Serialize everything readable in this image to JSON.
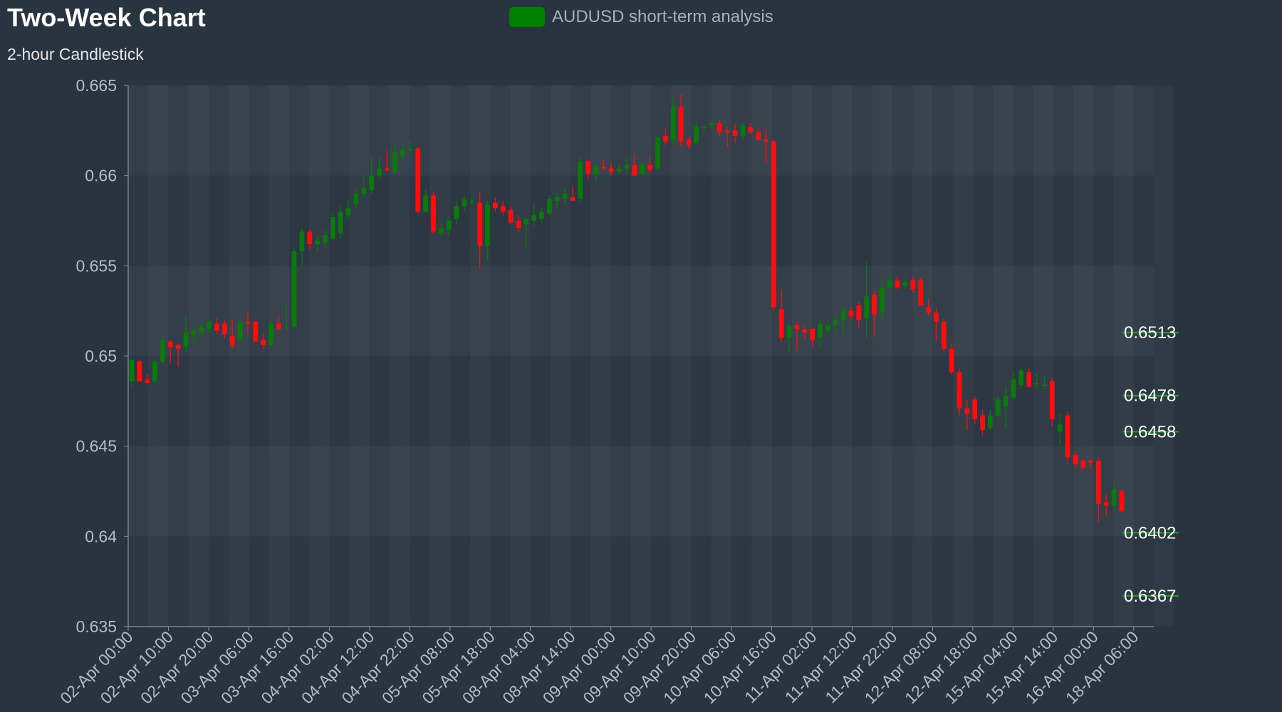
{
  "title": "Two-Week Chart",
  "subtitle": "2-hour Candlestick",
  "legend": {
    "label": "AUDUSD short-term analysis",
    "color": "#008000"
  },
  "colors": {
    "up": "#0a7a0a",
    "down": "#ff0d0d",
    "level": "#1fa31f",
    "band_light": "#333e4a",
    "band_dark": "#2c3743"
  },
  "chart_data": {
    "type": "candlestick",
    "series_name": "AUDUSD short-term analysis",
    "interval": "2 hours",
    "ylim": [
      0.635,
      0.665
    ],
    "yticks": [
      0.635,
      0.64,
      0.645,
      0.65,
      0.655,
      0.66,
      0.665
    ],
    "ytick_labels": [
      "0.635",
      "0.64",
      "0.645",
      "0.65",
      "0.655",
      "0.66",
      "0.665"
    ],
    "xtick_labels": [
      "02-Apr 00:00",
      "02-Apr 10:00",
      "02-Apr 20:00",
      "03-Apr 06:00",
      "03-Apr 16:00",
      "04-Apr 02:00",
      "04-Apr 12:00",
      "04-Apr 22:00",
      "05-Apr 08:00",
      "05-Apr 18:00",
      "08-Apr 04:00",
      "08-Apr 14:00",
      "09-Apr 00:00",
      "09-Apr 10:00",
      "09-Apr 20:00",
      "10-Apr 06:00",
      "10-Apr 16:00",
      "11-Apr 02:00",
      "11-Apr 12:00",
      "11-Apr 22:00",
      "12-Apr 08:00",
      "12-Apr 18:00",
      "15-Apr 04:00",
      "15-Apr 14:00",
      "16-Apr 00:00",
      "18-Apr 06:00"
    ],
    "candles": [
      {
        "o": 0.6486,
        "h": 0.6498,
        "l": 0.6483,
        "c": 0.6498
      },
      {
        "o": 0.6497,
        "h": 0.6498,
        "l": 0.6486,
        "c": 0.6486
      },
      {
        "o": 0.6487,
        "h": 0.649,
        "l": 0.6484,
        "c": 0.6485
      },
      {
        "o": 0.6486,
        "h": 0.6498,
        "l": 0.6485,
        "c": 0.6497
      },
      {
        "o": 0.6497,
        "h": 0.6511,
        "l": 0.6495,
        "c": 0.6509
      },
      {
        "o": 0.6508,
        "h": 0.6509,
        "l": 0.6496,
        "c": 0.6505
      },
      {
        "o": 0.6506,
        "h": 0.6507,
        "l": 0.6494,
        "c": 0.6504
      },
      {
        "o": 0.6505,
        "h": 0.6523,
        "l": 0.6502,
        "c": 0.6513
      },
      {
        "o": 0.6512,
        "h": 0.6515,
        "l": 0.6506,
        "c": 0.6514
      },
      {
        "o": 0.6513,
        "h": 0.6518,
        "l": 0.651,
        "c": 0.6516
      },
      {
        "o": 0.6515,
        "h": 0.652,
        "l": 0.6513,
        "c": 0.6519
      },
      {
        "o": 0.6518,
        "h": 0.6521,
        "l": 0.6512,
        "c": 0.6514
      },
      {
        "o": 0.6518,
        "h": 0.652,
        "l": 0.651,
        "c": 0.6512
      },
      {
        "o": 0.6511,
        "h": 0.652,
        "l": 0.6504,
        "c": 0.6506
      },
      {
        "o": 0.6509,
        "h": 0.652,
        "l": 0.6507,
        "c": 0.6519
      },
      {
        "o": 0.6519,
        "h": 0.6525,
        "l": 0.6512,
        "c": 0.6518
      },
      {
        "o": 0.6519,
        "h": 0.652,
        "l": 0.6508,
        "c": 0.6508
      },
      {
        "o": 0.6509,
        "h": 0.6512,
        "l": 0.6504,
        "c": 0.6506
      },
      {
        "o": 0.6506,
        "h": 0.652,
        "l": 0.6505,
        "c": 0.6518
      },
      {
        "o": 0.6518,
        "h": 0.6522,
        "l": 0.6514,
        "c": 0.6515
      },
      {
        "o": 0.6516,
        "h": 0.653,
        "l": 0.6514,
        "c": 0.6516
      },
      {
        "o": 0.6516,
        "h": 0.656,
        "l": 0.6515,
        "c": 0.6558
      },
      {
        "o": 0.6558,
        "h": 0.6571,
        "l": 0.655,
        "c": 0.6569
      },
      {
        "o": 0.6569,
        "h": 0.657,
        "l": 0.6559,
        "c": 0.6562
      },
      {
        "o": 0.6562,
        "h": 0.6566,
        "l": 0.6558,
        "c": 0.6564
      },
      {
        "o": 0.6563,
        "h": 0.657,
        "l": 0.656,
        "c": 0.6567
      },
      {
        "o": 0.6565,
        "h": 0.6579,
        "l": 0.6564,
        "c": 0.6577
      },
      {
        "o": 0.6568,
        "h": 0.6583,
        "l": 0.6565,
        "c": 0.658
      },
      {
        "o": 0.6578,
        "h": 0.6587,
        "l": 0.6576,
        "c": 0.6582
      },
      {
        "o": 0.6584,
        "h": 0.6593,
        "l": 0.6582,
        "c": 0.659
      },
      {
        "o": 0.659,
        "h": 0.66,
        "l": 0.6588,
        "c": 0.6593
      },
      {
        "o": 0.6592,
        "h": 0.661,
        "l": 0.659,
        "c": 0.66
      },
      {
        "o": 0.66,
        "h": 0.661,
        "l": 0.6598,
        "c": 0.6604
      },
      {
        "o": 0.6604,
        "h": 0.6614,
        "l": 0.6602,
        "c": 0.6603
      },
      {
        "o": 0.6602,
        "h": 0.6619,
        "l": 0.6601,
        "c": 0.6613
      },
      {
        "o": 0.6611,
        "h": 0.6618,
        "l": 0.6609,
        "c": 0.6614
      },
      {
        "o": 0.6614,
        "h": 0.6619,
        "l": 0.6612,
        "c": 0.6615
      },
      {
        "o": 0.6615,
        "h": 0.6616,
        "l": 0.6579,
        "c": 0.658
      },
      {
        "o": 0.658,
        "h": 0.6592,
        "l": 0.658,
        "c": 0.6589
      },
      {
        "o": 0.6589,
        "h": 0.6591,
        "l": 0.6568,
        "c": 0.6569
      },
      {
        "o": 0.6568,
        "h": 0.6575,
        "l": 0.6566,
        "c": 0.6571
      },
      {
        "o": 0.657,
        "h": 0.6578,
        "l": 0.6567,
        "c": 0.6575
      },
      {
        "o": 0.6576,
        "h": 0.6586,
        "l": 0.6573,
        "c": 0.6583
      },
      {
        "o": 0.6583,
        "h": 0.6589,
        "l": 0.658,
        "c": 0.6587
      },
      {
        "o": 0.6586,
        "h": 0.6588,
        "l": 0.6584,
        "c": 0.6586
      },
      {
        "o": 0.6585,
        "h": 0.6591,
        "l": 0.6549,
        "c": 0.6561
      },
      {
        "o": 0.6561,
        "h": 0.6586,
        "l": 0.6553,
        "c": 0.6584
      },
      {
        "o": 0.6585,
        "h": 0.6588,
        "l": 0.658,
        "c": 0.6582
      },
      {
        "o": 0.6583,
        "h": 0.6586,
        "l": 0.6578,
        "c": 0.658
      },
      {
        "o": 0.6581,
        "h": 0.6583,
        "l": 0.6573,
        "c": 0.6574
      },
      {
        "o": 0.6575,
        "h": 0.6578,
        "l": 0.6569,
        "c": 0.6571
      },
      {
        "o": 0.6573,
        "h": 0.6576,
        "l": 0.6559,
        "c": 0.6576
      },
      {
        "o": 0.6575,
        "h": 0.6585,
        "l": 0.6572,
        "c": 0.6578
      },
      {
        "o": 0.6576,
        "h": 0.6582,
        "l": 0.6574,
        "c": 0.658
      },
      {
        "o": 0.6579,
        "h": 0.6589,
        "l": 0.6578,
        "c": 0.6587
      },
      {
        "o": 0.6586,
        "h": 0.659,
        "l": 0.6582,
        "c": 0.6588
      },
      {
        "o": 0.6587,
        "h": 0.6593,
        "l": 0.6584,
        "c": 0.659
      },
      {
        "o": 0.6588,
        "h": 0.6594,
        "l": 0.6586,
        "c": 0.6586
      },
      {
        "o": 0.6587,
        "h": 0.661,
        "l": 0.6585,
        "c": 0.6608
      },
      {
        "o": 0.6608,
        "h": 0.6609,
        "l": 0.6598,
        "c": 0.6601
      },
      {
        "o": 0.6601,
        "h": 0.6607,
        "l": 0.6597,
        "c": 0.6605
      },
      {
        "o": 0.6605,
        "h": 0.6609,
        "l": 0.6603,
        "c": 0.6604
      },
      {
        "o": 0.6604,
        "h": 0.6607,
        "l": 0.66,
        "c": 0.6602
      },
      {
        "o": 0.6602,
        "h": 0.6606,
        "l": 0.6601,
        "c": 0.6604
      },
      {
        "o": 0.6604,
        "h": 0.661,
        "l": 0.6601,
        "c": 0.6606
      },
      {
        "o": 0.6606,
        "h": 0.6612,
        "l": 0.66,
        "c": 0.66
      },
      {
        "o": 0.6601,
        "h": 0.6608,
        "l": 0.66,
        "c": 0.6606
      },
      {
        "o": 0.6606,
        "h": 0.661,
        "l": 0.6602,
        "c": 0.6603
      },
      {
        "o": 0.6604,
        "h": 0.6622,
        "l": 0.6603,
        "c": 0.6621
      },
      {
        "o": 0.6622,
        "h": 0.6626,
        "l": 0.6617,
        "c": 0.6619
      },
      {
        "o": 0.662,
        "h": 0.6643,
        "l": 0.6617,
        "c": 0.6638
      },
      {
        "o": 0.6638,
        "h": 0.6645,
        "l": 0.6616,
        "c": 0.6619
      },
      {
        "o": 0.662,
        "h": 0.6621,
        "l": 0.6615,
        "c": 0.6617
      },
      {
        "o": 0.6618,
        "h": 0.663,
        "l": 0.6617,
        "c": 0.6627
      },
      {
        "o": 0.6627,
        "h": 0.6628,
        "l": 0.6624,
        "c": 0.6627
      },
      {
        "o": 0.6628,
        "h": 0.663,
        "l": 0.6626,
        "c": 0.6629
      },
      {
        "o": 0.6629,
        "h": 0.6631,
        "l": 0.6622,
        "c": 0.6624
      },
      {
        "o": 0.6625,
        "h": 0.6627,
        "l": 0.6616,
        "c": 0.6624
      },
      {
        "o": 0.6625,
        "h": 0.6629,
        "l": 0.6618,
        "c": 0.6622
      },
      {
        "o": 0.6622,
        "h": 0.6629,
        "l": 0.662,
        "c": 0.6628
      },
      {
        "o": 0.6627,
        "h": 0.6629,
        "l": 0.6623,
        "c": 0.6624
      },
      {
        "o": 0.6624,
        "h": 0.6626,
        "l": 0.662,
        "c": 0.662
      },
      {
        "o": 0.662,
        "h": 0.6626,
        "l": 0.6607,
        "c": 0.6619
      },
      {
        "o": 0.6619,
        "h": 0.662,
        "l": 0.6525,
        "c": 0.6527
      },
      {
        "o": 0.6526,
        "h": 0.6537,
        "l": 0.6508,
        "c": 0.651
      },
      {
        "o": 0.651,
        "h": 0.6518,
        "l": 0.6502,
        "c": 0.6517
      },
      {
        "o": 0.6517,
        "h": 0.6519,
        "l": 0.6503,
        "c": 0.6515
      },
      {
        "o": 0.6515,
        "h": 0.6517,
        "l": 0.6509,
        "c": 0.6513
      },
      {
        "o": 0.6515,
        "h": 0.6516,
        "l": 0.6505,
        "c": 0.6509
      },
      {
        "o": 0.651,
        "h": 0.652,
        "l": 0.6504,
        "c": 0.6518
      },
      {
        "o": 0.6514,
        "h": 0.652,
        "l": 0.6512,
        "c": 0.6517
      },
      {
        "o": 0.6517,
        "h": 0.6523,
        "l": 0.6514,
        "c": 0.652
      },
      {
        "o": 0.652,
        "h": 0.6527,
        "l": 0.6512,
        "c": 0.6525
      },
      {
        "o": 0.6525,
        "h": 0.6527,
        "l": 0.652,
        "c": 0.6522
      },
      {
        "o": 0.6528,
        "h": 0.653,
        "l": 0.6516,
        "c": 0.652
      },
      {
        "o": 0.6521,
        "h": 0.6552,
        "l": 0.651,
        "c": 0.6533
      },
      {
        "o": 0.6534,
        "h": 0.6536,
        "l": 0.6511,
        "c": 0.6523
      },
      {
        "o": 0.6524,
        "h": 0.6542,
        "l": 0.6519,
        "c": 0.6538
      },
      {
        "o": 0.6538,
        "h": 0.6546,
        "l": 0.6536,
        "c": 0.6542
      },
      {
        "o": 0.6542,
        "h": 0.6544,
        "l": 0.6537,
        "c": 0.6538
      },
      {
        "o": 0.6539,
        "h": 0.6543,
        "l": 0.6537,
        "c": 0.6541
      },
      {
        "o": 0.6542,
        "h": 0.6544,
        "l": 0.6535,
        "c": 0.6537
      },
      {
        "o": 0.6542,
        "h": 0.6543,
        "l": 0.6528,
        "c": 0.6528
      },
      {
        "o": 0.6527,
        "h": 0.6532,
        "l": 0.6522,
        "c": 0.6524
      },
      {
        "o": 0.6524,
        "h": 0.6527,
        "l": 0.6508,
        "c": 0.6519
      },
      {
        "o": 0.6519,
        "h": 0.6521,
        "l": 0.6502,
        "c": 0.6504
      },
      {
        "o": 0.6504,
        "h": 0.6507,
        "l": 0.649,
        "c": 0.6491
      },
      {
        "o": 0.6491,
        "h": 0.6493,
        "l": 0.6467,
        "c": 0.6471
      },
      {
        "o": 0.6471,
        "h": 0.6476,
        "l": 0.6459,
        "c": 0.6468
      },
      {
        "o": 0.6476,
        "h": 0.6478,
        "l": 0.6462,
        "c": 0.6465
      },
      {
        "o": 0.6467,
        "h": 0.647,
        "l": 0.6456,
        "c": 0.6459
      },
      {
        "o": 0.646,
        "h": 0.647,
        "l": 0.6459,
        "c": 0.6467
      },
      {
        "o": 0.6467,
        "h": 0.6478,
        "l": 0.6466,
        "c": 0.6476
      },
      {
        "o": 0.6472,
        "h": 0.6483,
        "l": 0.646,
        "c": 0.6478
      },
      {
        "o": 0.6477,
        "h": 0.6491,
        "l": 0.6476,
        "c": 0.6487
      },
      {
        "o": 0.6484,
        "h": 0.6494,
        "l": 0.6482,
        "c": 0.6492
      },
      {
        "o": 0.6491,
        "h": 0.6493,
        "l": 0.6482,
        "c": 0.6483
      },
      {
        "o": 0.6485,
        "h": 0.649,
        "l": 0.6482,
        "c": 0.6485
      },
      {
        "o": 0.6484,
        "h": 0.6489,
        "l": 0.6482,
        "c": 0.6484
      },
      {
        "o": 0.6486,
        "h": 0.6488,
        "l": 0.6461,
        "c": 0.6465
      },
      {
        "o": 0.6458,
        "h": 0.6468,
        "l": 0.6451,
        "c": 0.6462
      },
      {
        "o": 0.6467,
        "h": 0.6469,
        "l": 0.644,
        "c": 0.6444
      },
      {
        "o": 0.6445,
        "h": 0.6447,
        "l": 0.6439,
        "c": 0.644
      },
      {
        "o": 0.6442,
        "h": 0.6443,
        "l": 0.6437,
        "c": 0.6438
      },
      {
        "o": 0.6442,
        "h": 0.6443,
        "l": 0.6437,
        "c": 0.6441
      },
      {
        "o": 0.6442,
        "h": 0.6444,
        "l": 0.6408,
        "c": 0.6418
      },
      {
        "o": 0.6419,
        "h": 0.6423,
        "l": 0.6411,
        "c": 0.6417
      },
      {
        "o": 0.6417,
        "h": 0.643,
        "l": 0.6415,
        "c": 0.6426
      },
      {
        "o": 0.6425,
        "h": 0.6426,
        "l": 0.6413,
        "c": 0.6414
      }
    ],
    "price_levels": [
      {
        "value": 0.6513,
        "label": "0.6513"
      },
      {
        "value": 0.6478,
        "label": "0.6478"
      },
      {
        "value": 0.6458,
        "label": "0.6458"
      },
      {
        "value": 0.6402,
        "label": "0.6402"
      },
      {
        "value": 0.6367,
        "label": "0.6367"
      }
    ]
  }
}
